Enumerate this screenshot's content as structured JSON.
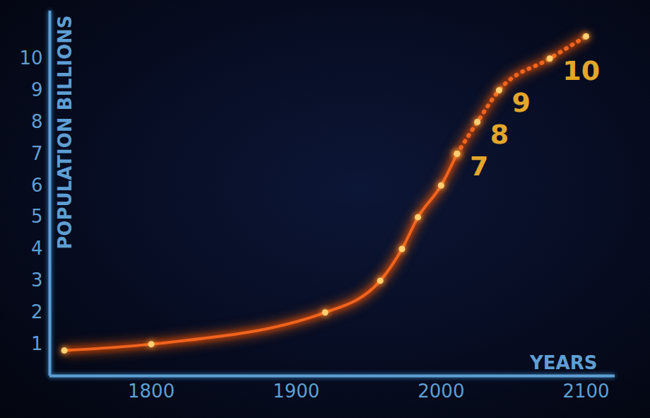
{
  "chart_data": {
    "type": "line",
    "y_label": "POPULATION BILLIONS",
    "x_label": "YEARS",
    "x": [
      1740,
      1800,
      1920,
      1958,
      1973,
      1984,
      2000,
      2011,
      2025,
      2040,
      2075,
      2100
    ],
    "series": [
      {
        "color": "#f0641e",
        "line_style": "solid",
        "marker": "circle",
        "values": [
          0.8,
          1,
          2,
          3,
          4,
          5,
          6,
          7,
          null,
          null,
          null,
          null
        ]
      },
      {
        "color": "#f0641e",
        "line_style": "dotted",
        "marker": "circle",
        "values": [
          null,
          null,
          null,
          null,
          null,
          null,
          null,
          7,
          8,
          9,
          10,
          10.7
        ]
      }
    ],
    "annotations": [
      {
        "text": "7",
        "x": 2011,
        "y": 7
      },
      {
        "text": "8",
        "x": 2025,
        "y": 8
      },
      {
        "text": "9",
        "x": 2040,
        "y": 9
      },
      {
        "text": "10",
        "x": 2075,
        "y": 10
      }
    ],
    "xlim": [
      1730,
      2120
    ],
    "ylim": [
      0,
      11.5
    ],
    "xticks": [
      1800,
      1900,
      2000,
      2100
    ],
    "yticks": [
      1,
      2,
      3,
      4,
      5,
      6,
      7,
      8,
      9,
      10
    ],
    "grid": false
  }
}
